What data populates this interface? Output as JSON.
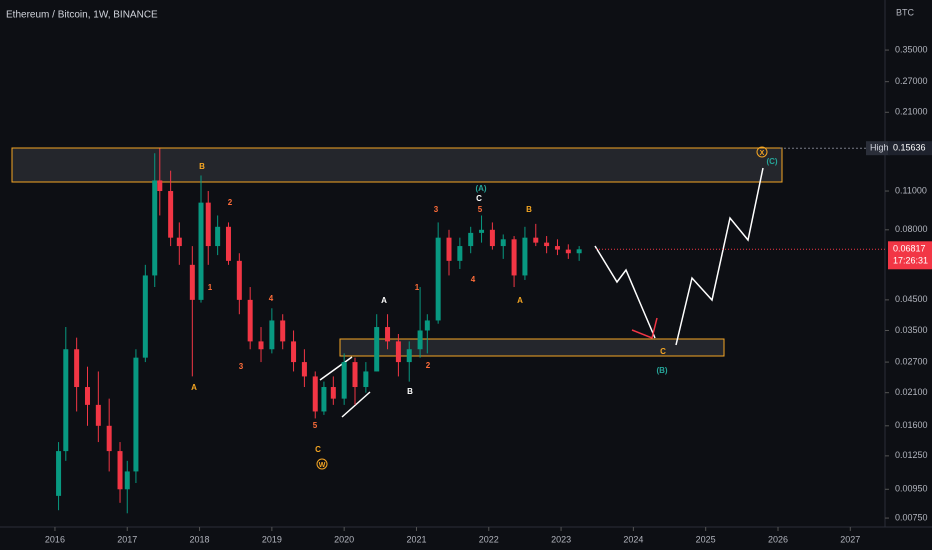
{
  "chart_data": {
    "type": "candlestick",
    "title": "Ethereum / Bitcoin, 1W, BINANCE",
    "currency": "BTC",
    "log_scale": true,
    "up_color": "#089981",
    "down_color": "#f23645",
    "x": [
      2016.05,
      2016.15,
      2016.3,
      2016.45,
      2016.6,
      2016.75,
      2016.9,
      2017.0,
      2017.12,
      2017.25,
      2017.38,
      2017.45,
      2017.6,
      2017.72,
      2017.9,
      2018.02,
      2018.12,
      2018.25,
      2018.4,
      2018.55,
      2018.7,
      2018.85,
      2019.0,
      2019.15,
      2019.3,
      2019.45,
      2019.6,
      2019.72,
      2019.85,
      2020.0,
      2020.15,
      2020.3,
      2020.45,
      2020.6,
      2020.75,
      2020.9,
      2021.05,
      2021.15,
      2021.3,
      2021.45,
      2021.6,
      2021.75,
      2021.9,
      2022.05,
      2022.2,
      2022.35,
      2022.5,
      2022.65,
      2022.8,
      2022.95,
      2023.1,
      2023.25
    ],
    "open": [
      0.009,
      0.013,
      0.03,
      0.022,
      0.019,
      0.016,
      0.013,
      0.0095,
      0.011,
      0.028,
      0.055,
      0.12,
      0.11,
      0.075,
      0.06,
      0.045,
      0.1,
      0.07,
      0.082,
      0.062,
      0.045,
      0.032,
      0.03,
      0.038,
      0.032,
      0.027,
      0.024,
      0.018,
      0.022,
      0.02,
      0.027,
      0.022,
      0.025,
      0.036,
      0.032,
      0.027,
      0.03,
      0.035,
      0.038,
      0.075,
      0.062,
      0.07,
      0.078,
      0.08,
      0.07,
      0.074,
      0.055,
      0.075,
      0.072,
      0.07,
      0.068,
      0.066
    ],
    "high": [
      0.014,
      0.036,
      0.033,
      0.026,
      0.025,
      0.02,
      0.014,
      0.012,
      0.03,
      0.06,
      0.15,
      0.156,
      0.13,
      0.085,
      0.07,
      0.125,
      0.11,
      0.09,
      0.085,
      0.066,
      0.05,
      0.036,
      0.042,
      0.04,
      0.035,
      0.03,
      0.025,
      0.023,
      0.024,
      0.029,
      0.028,
      0.027,
      0.04,
      0.04,
      0.034,
      0.032,
      0.05,
      0.04,
      0.085,
      0.08,
      0.075,
      0.082,
      0.09,
      0.085,
      0.077,
      0.076,
      0.082,
      0.084,
      0.076,
      0.074,
      0.071,
      0.07
    ],
    "low": [
      0.008,
      0.012,
      0.018,
      0.016,
      0.014,
      0.011,
      0.0085,
      0.0078,
      0.01,
      0.027,
      0.05,
      0.09,
      0.07,
      0.06,
      0.024,
      0.044,
      0.06,
      0.065,
      0.06,
      0.04,
      0.03,
      0.027,
      0.029,
      0.03,
      0.025,
      0.022,
      0.017,
      0.0175,
      0.019,
      0.019,
      0.019,
      0.021,
      0.025,
      0.03,
      0.024,
      0.023,
      0.028,
      0.029,
      0.037,
      0.055,
      0.058,
      0.066,
      0.072,
      0.068,
      0.063,
      0.05,
      0.053,
      0.07,
      0.066,
      0.065,
      0.063,
      0.062
    ],
    "close": [
      0.013,
      0.03,
      0.022,
      0.019,
      0.016,
      0.013,
      0.0095,
      0.011,
      0.028,
      0.055,
      0.12,
      0.11,
      0.075,
      0.07,
      0.045,
      0.1,
      0.07,
      0.082,
      0.062,
      0.045,
      0.032,
      0.03,
      0.038,
      0.032,
      0.027,
      0.024,
      0.018,
      0.022,
      0.02,
      0.027,
      0.022,
      0.025,
      0.036,
      0.032,
      0.027,
      0.03,
      0.035,
      0.038,
      0.075,
      0.062,
      0.07,
      0.078,
      0.08,
      0.07,
      0.074,
      0.055,
      0.075,
      0.072,
      0.07,
      0.068,
      0.066,
      0.06817
    ],
    "xlim": [
      2015.24,
      2027.48
    ],
    "xticks": [
      2016,
      2017,
      2018,
      2019,
      2020,
      2021,
      2022,
      2023,
      2024,
      2025,
      2026,
      2027
    ],
    "ylim": [
      0.00697,
      0.528
    ],
    "yticks": [
      {
        "value": 0.35,
        "label": "0.35000"
      },
      {
        "value": 0.27,
        "label": "0.27000"
      },
      {
        "value": 0.21,
        "label": "0.21000"
      },
      {
        "value": 0.11,
        "label": "0.11000"
      },
      {
        "value": 0.08,
        "label": "0.08000"
      },
      {
        "value": 0.045,
        "label": "0.04500"
      },
      {
        "value": 0.035,
        "label": "0.03500"
      },
      {
        "value": 0.027,
        "label": "0.02700"
      },
      {
        "value": 0.021,
        "label": "0.02100"
      },
      {
        "value": 0.016,
        "label": "0.01600"
      },
      {
        "value": 0.0125,
        "label": "0.01250"
      },
      {
        "value": 0.0095,
        "label": "0.00950"
      },
      {
        "value": 0.0075,
        "label": "0.00750"
      }
    ],
    "high_marker": {
      "label": "High",
      "value": 0.15636,
      "value_label": "0.15636"
    },
    "last_price": {
      "value": 0.06817,
      "value_label": "0.06817",
      "countdown": "17:26:31"
    },
    "annotations": [
      "B",
      "2",
      "1",
      "A",
      "4",
      "3",
      "5",
      "C",
      "W",
      "A",
      "B",
      "1",
      "2",
      "3",
      "4",
      "5",
      "(A)",
      "C",
      "B",
      "A",
      "C",
      "(B)",
      "X",
      "(C)"
    ]
  }
}
